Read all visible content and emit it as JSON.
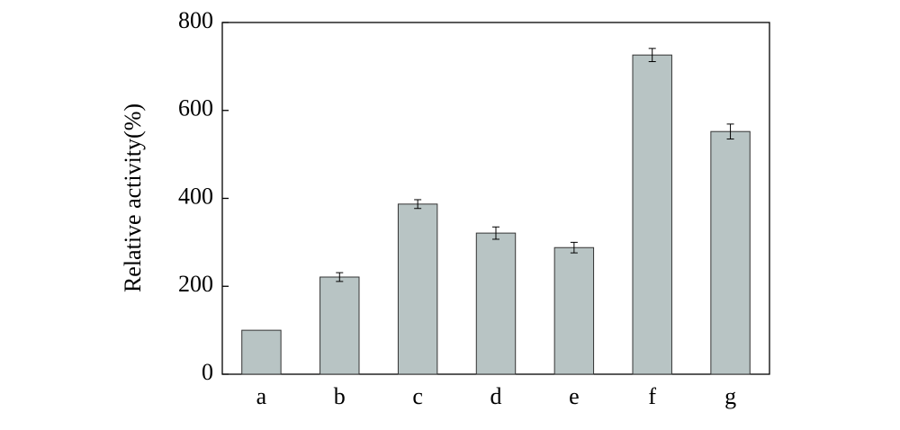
{
  "chart_data": {
    "type": "bar",
    "y_label": "Relative activity(%)",
    "categories": [
      "a",
      "b",
      "c",
      "d",
      "e",
      "f",
      "g"
    ],
    "values": [
      100,
      221,
      387,
      321,
      288,
      726,
      552
    ],
    "errors": [
      0,
      10,
      10,
      14,
      12,
      15,
      17
    ],
    "color": "#b8c4c4",
    "ylim": [
      0,
      800
    ],
    "yticks": [
      0,
      200,
      400,
      600,
      800
    ],
    "grid": false
  }
}
